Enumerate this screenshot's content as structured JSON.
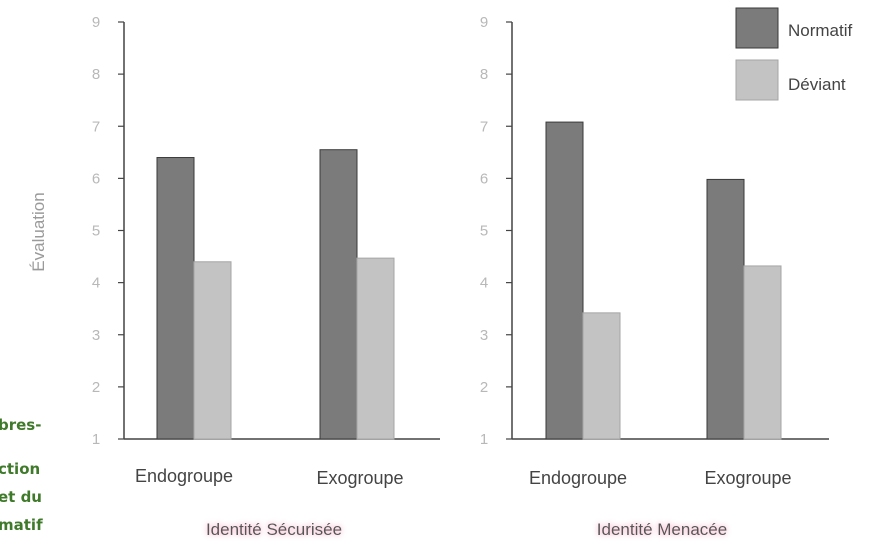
{
  "side_fragments": [
    "bres-",
    "ction",
    "et du",
    "matif"
  ],
  "colors": {
    "normatif": "#7b7b7b",
    "deviant": "#c3c3c3",
    "bar_stroke": "#3a3a3a",
    "axis": "#444444",
    "panel_title_glow": "#f7c6d8",
    "side_text": "#3f7a2a"
  },
  "chart_data": [
    {
      "type": "bar",
      "title": "Identité Sécurisée",
      "xlabel": "Identité Sécurisée",
      "ylabel": "Évaluation",
      "ylim": [
        1,
        9
      ],
      "yticks": [
        "1",
        "2",
        "3",
        "4",
        "5",
        "6",
        "7",
        "8",
        "9"
      ],
      "categories": [
        "Endogroupe",
        "Exogroupe"
      ],
      "series": [
        {
          "name": "Normatif",
          "values": [
            6.4,
            6.55
          ]
        },
        {
          "name": "Déviant",
          "values": [
            4.4,
            4.47
          ]
        }
      ]
    },
    {
      "type": "bar",
      "title": "Identité Menacée",
      "xlabel": "Identité Menacée",
      "ylim": [
        1,
        9
      ],
      "yticks": [
        "1",
        "2",
        "3",
        "4",
        "5",
        "6",
        "7",
        "8",
        "9"
      ],
      "categories": [
        "Endogroupe",
        "Exogroupe"
      ],
      "series": [
        {
          "name": "Normatif",
          "values": [
            7.08,
            5.98
          ]
        },
        {
          "name": "Déviant",
          "values": [
            3.42,
            4.32
          ]
        }
      ],
      "legend": {
        "position": "top-right",
        "entries": [
          "Normatif",
          "Déviant"
        ]
      }
    }
  ]
}
